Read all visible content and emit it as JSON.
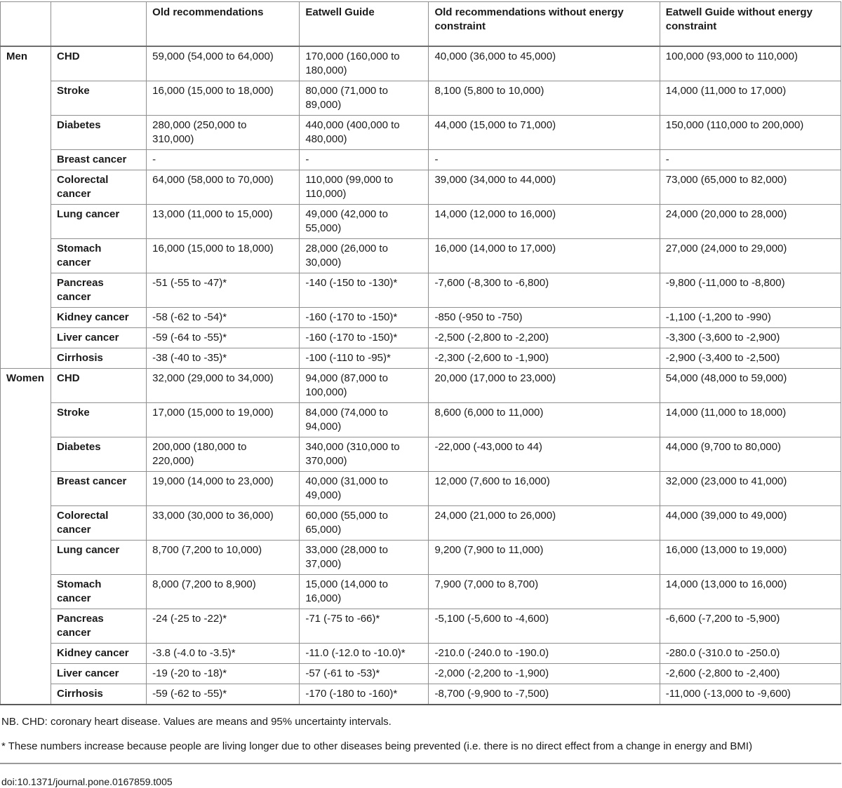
{
  "table": {
    "header": {
      "group_col": "",
      "disease_col": "",
      "columns": [
        "Old recommendations",
        "Eatwell Guide",
        "Old recommendations without energy constraint",
        "Eatwell Guide without energy constraint"
      ]
    },
    "groups": [
      {
        "label": "Men",
        "rows": [
          {
            "disease": "CHD",
            "values": [
              "59,000 (54,000 to 64,000)",
              "170,000 (160,000 to 180,000)",
              "40,000 (36,000 to 45,000)",
              "100,000 (93,000 to 110,000)"
            ]
          },
          {
            "disease": "Stroke",
            "values": [
              "16,000 (15,000 to 18,000)",
              "80,000 (71,000 to 89,000)",
              "8,100 (5,800 to 10,000)",
              "14,000 (11,000 to 17,000)"
            ]
          },
          {
            "disease": "Diabetes",
            "values": [
              "280,000 (250,000 to 310,000)",
              "440,000 (400,000 to 480,000)",
              "44,000 (15,000 to 71,000)",
              "150,000 (110,000 to 200,000)"
            ]
          },
          {
            "disease": "Breast cancer",
            "values": [
              "-",
              "-",
              "-",
              "-"
            ]
          },
          {
            "disease": "Colorectal cancer",
            "values": [
              "64,000 (58,000 to 70,000)",
              "110,000 (99,000 to 110,000)",
              "39,000 (34,000 to 44,000)",
              "73,000 (65,000 to 82,000)"
            ]
          },
          {
            "disease": "Lung cancer",
            "values": [
              "13,000 (11,000 to 15,000)",
              "49,000 (42,000 to 55,000)",
              "14,000 (12,000 to 16,000)",
              "24,000 (20,000 to 28,000)"
            ]
          },
          {
            "disease": "Stomach cancer",
            "values": [
              "16,000 (15,000 to 18,000)",
              "28,000 (26,000 to 30,000)",
              "16,000 (14,000 to 17,000)",
              "27,000 (24,000 to 29,000)"
            ]
          },
          {
            "disease": "Pancreas cancer",
            "values": [
              "-51 (-55 to -47)*",
              "-140 (-150 to -130)*",
              "-7,600 (-8,300 to -6,800)",
              "-9,800 (-11,000 to -8,800)"
            ]
          },
          {
            "disease": "Kidney cancer",
            "values": [
              "-58 (-62 to -54)*",
              "-160 (-170 to -150)*",
              "-850 (-950 to -750)",
              "-1,100 (-1,200 to -990)"
            ]
          },
          {
            "disease": "Liver cancer",
            "values": [
              "-59 (-64 to -55)*",
              "-160 (-170 to -150)*",
              "-2,500 (-2,800 to -2,200)",
              "-3,300 (-3,600 to -2,900)"
            ]
          },
          {
            "disease": "Cirrhosis",
            "values": [
              "-38 (-40 to -35)*",
              "-100 (-110 to -95)*",
              "-2,300 (-2,600 to -1,900)",
              "-2,900 (-3,400 to -2,500)"
            ]
          }
        ]
      },
      {
        "label": "Women",
        "rows": [
          {
            "disease": "CHD",
            "values": [
              "32,000 (29,000 to 34,000)",
              "94,000 (87,000 to 100,000)",
              "20,000 (17,000 to 23,000)",
              "54,000 (48,000 to 59,000)"
            ]
          },
          {
            "disease": "Stroke",
            "values": [
              "17,000 (15,000 to 19,000)",
              "84,000 (74,000 to 94,000)",
              "8,600 (6,000 to 11,000)",
              "14,000 (11,000 to 18,000)"
            ]
          },
          {
            "disease": "Diabetes",
            "values": [
              "200,000 (180,000 to 220,000)",
              "340,000 (310,000 to 370,000)",
              "-22,000 (-43,000 to 44)",
              "44,000 (9,700 to 80,000)"
            ]
          },
          {
            "disease": "Breast cancer",
            "values": [
              "19,000 (14,000 to 23,000)",
              "40,000 (31,000 to 49,000)",
              "12,000 (7,600 to 16,000)",
              "32,000 (23,000 to 41,000)"
            ]
          },
          {
            "disease": "Colorectal cancer",
            "values": [
              "33,000 (30,000 to 36,000)",
              "60,000 (55,000 to 65,000)",
              "24,000 (21,000 to 26,000)",
              "44,000 (39,000 to 49,000)"
            ]
          },
          {
            "disease": "Lung cancer",
            "values": [
              "8,700 (7,200 to 10,000)",
              "33,000 (28,000 to 37,000)",
              "9,200 (7,900 to 11,000)",
              "16,000 (13,000 to 19,000)"
            ]
          },
          {
            "disease": "Stomach cancer",
            "values": [
              "8,000 (7,200 to 8,900)",
              "15,000 (14,000 to 16,000)",
              "7,900 (7,000 to 8,700)",
              "14,000 (13,000 to 16,000)"
            ]
          },
          {
            "disease": "Pancreas cancer",
            "values": [
              "-24 (-25 to -22)*",
              "-71 (-75 to -66)*",
              "-5,100 (-5,600 to -4,600)",
              "-6,600 (-7,200 to -5,900)"
            ]
          },
          {
            "disease": "Kidney cancer",
            "values": [
              "-3.8 (-4.0 to -3.5)*",
              "-11.0 (-12.0 to -10.0)*",
              "-210.0 (-240.0 to -190.0)",
              "-280.0 (-310.0 to -250.0)"
            ]
          },
          {
            "disease": "Liver cancer",
            "values": [
              "-19 (-20 to -18)*",
              "-57 (-61 to -53)*",
              "-2,000 (-2,200 to -1,900)",
              "-2,600 (-2,800 to -2,400)"
            ]
          },
          {
            "disease": "Cirrhosis",
            "values": [
              "-59 (-62 to -55)*",
              "-170 (-180 to -160)*",
              "-8,700 (-9,900 to -7,500)",
              "-11,000 (-13,000 to -9,600)"
            ]
          }
        ]
      }
    ]
  },
  "notes": [
    "NB. CHD: coronary heart disease. Values are means and 95% uncertainty intervals.",
    "* These numbers increase because people are living longer due to other diseases being prevented (i.e. there is no direct effect from a change in energy and BMI)"
  ],
  "doi": "doi:10.1371/journal.pone.0167859.t005",
  "colors": {
    "grid_line": "#8f8f8f",
    "header_rule": "#6e6e6e",
    "bottom_rule": "#5a5a5a",
    "text": "#1a1a1a",
    "background": "#ffffff"
  }
}
